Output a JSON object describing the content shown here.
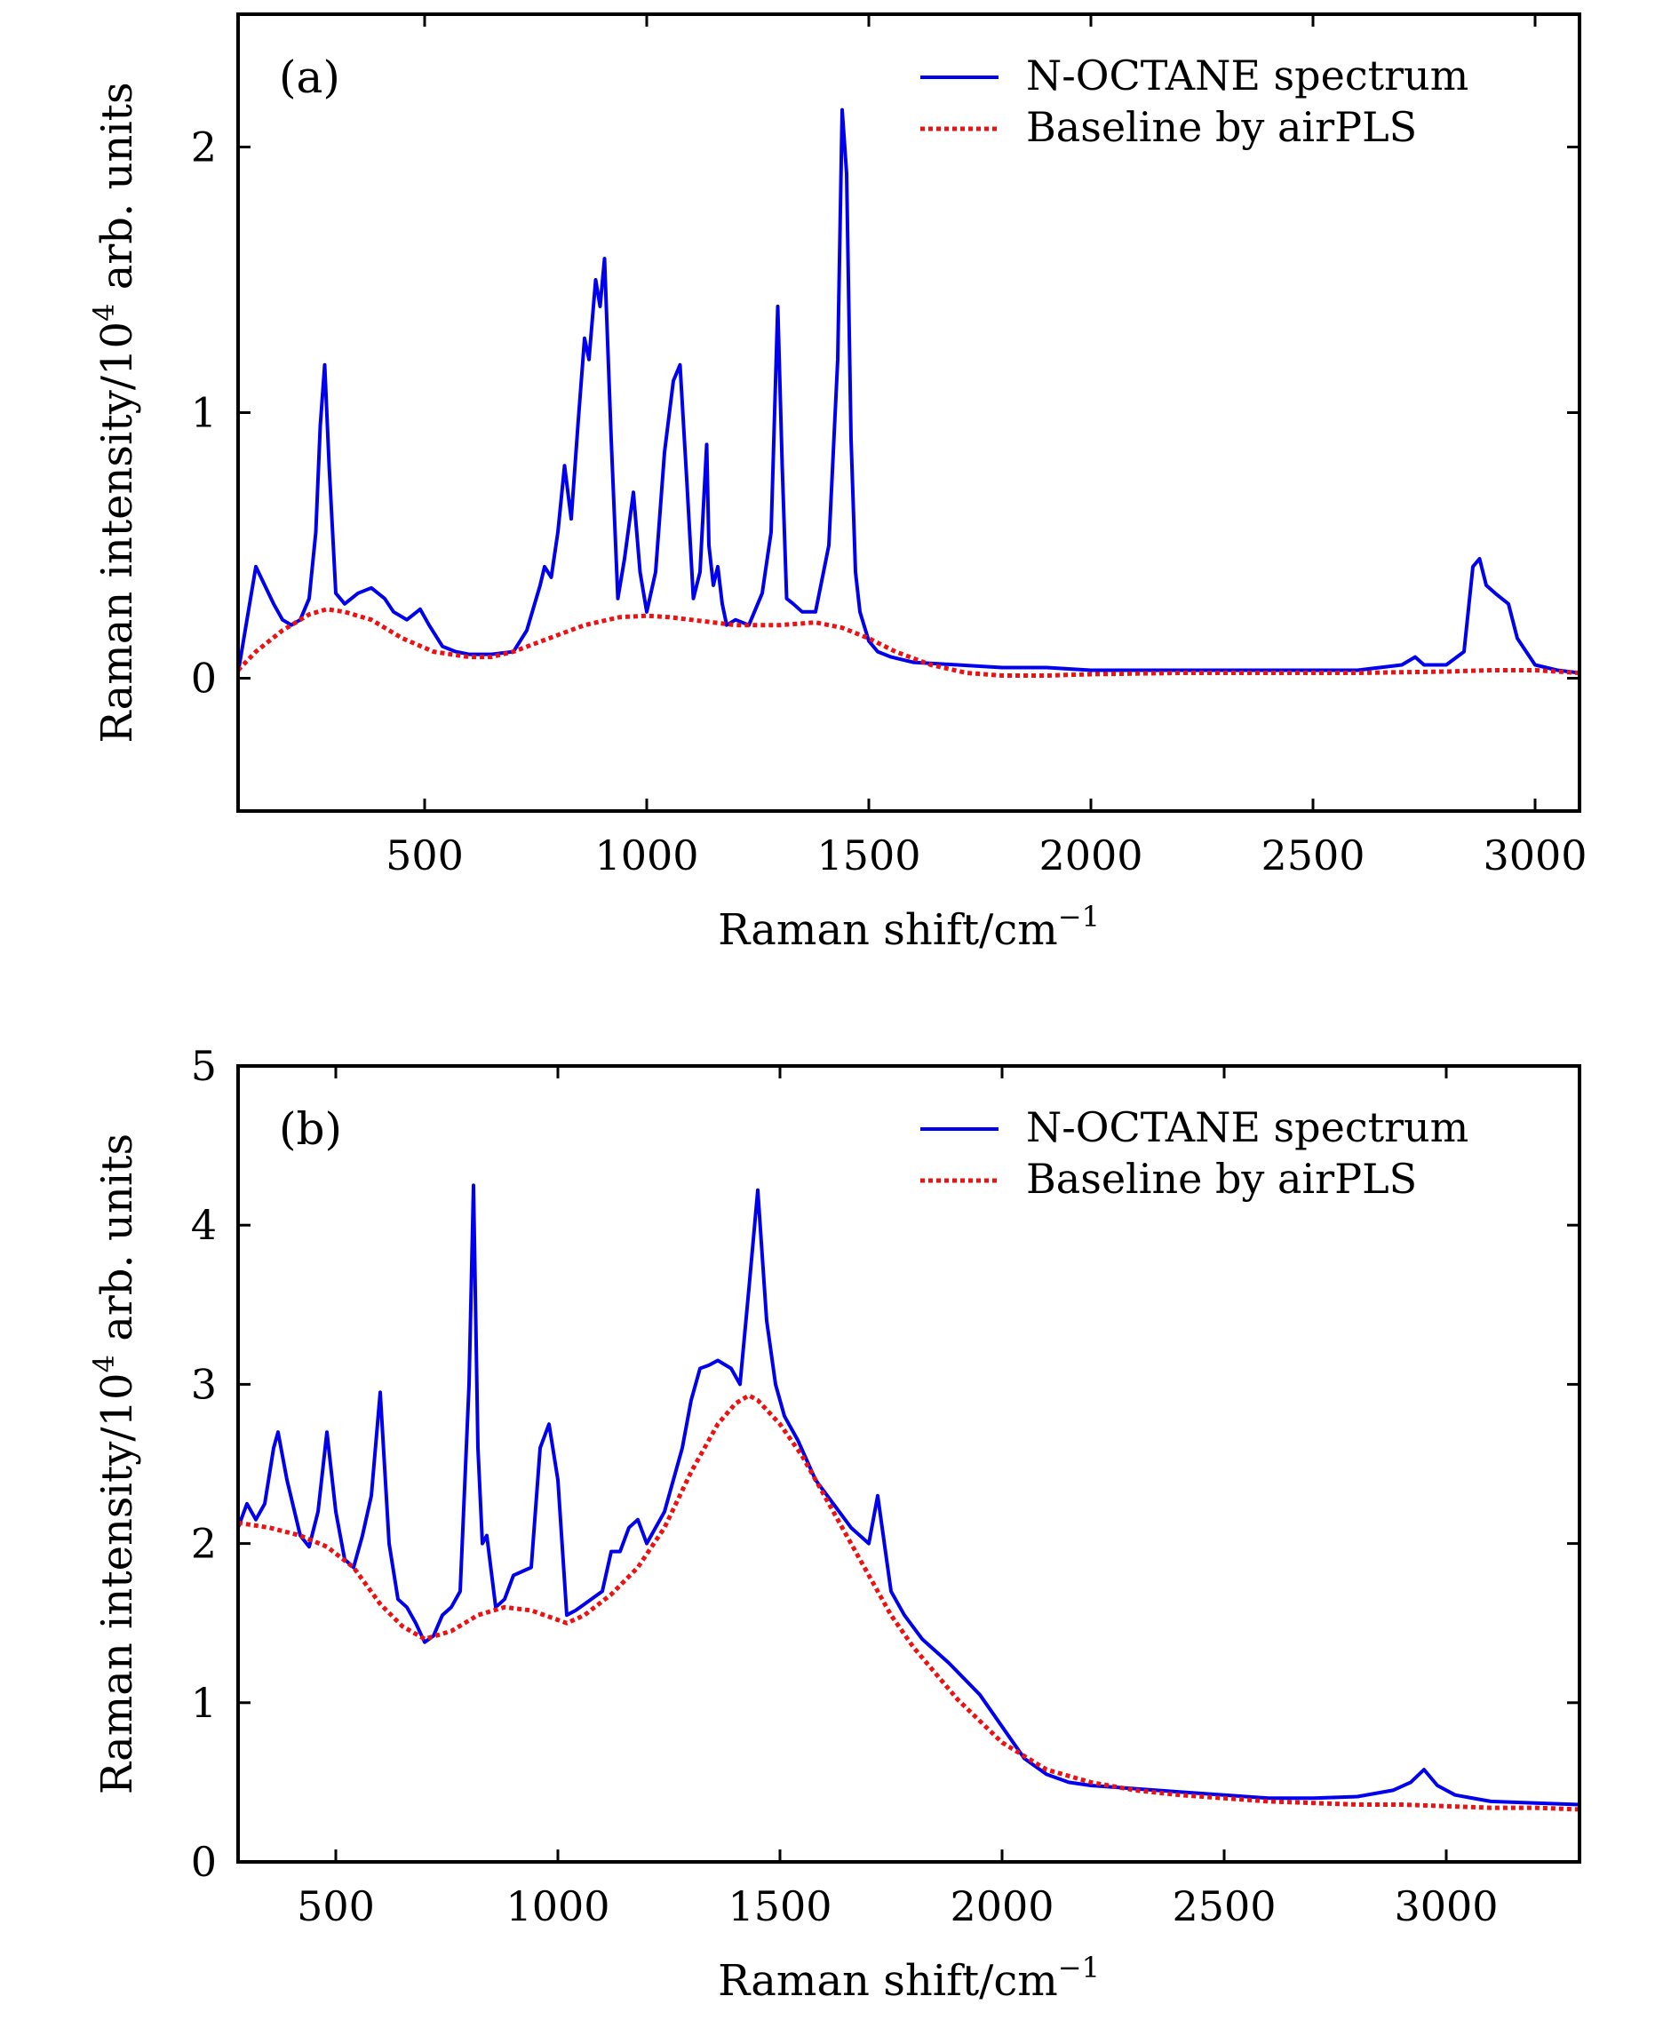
{
  "figure_title": "",
  "chart_data": [
    {
      "type": "line",
      "panel_label": "(a)",
      "title": "",
      "xlabel": "Raman shift/cm",
      "xlabel_sup": "−1",
      "ylabel_pre": "Raman intensity/10",
      "ylabel_sup": "4",
      "ylabel_post": " arb. units",
      "xlim": [
        80,
        3100
      ],
      "ylim": [
        -0.5,
        2.5
      ],
      "xticks": [
        500,
        1000,
        1500,
        2000,
        2500,
        3000
      ],
      "xtick_labels": [
        "500",
        "1000",
        "1500",
        "2000",
        "2500",
        "3000"
      ],
      "yticks": [
        0,
        1,
        2
      ],
      "ytick_labels": [
        "0",
        "1",
        "2"
      ],
      "legend_position": "top-right",
      "series": [
        {
          "name": "N-OCTANE spectrum",
          "color": "#0000ee",
          "style": "solid",
          "x": [
            80,
            100,
            120,
            140,
            160,
            180,
            200,
            220,
            240,
            255,
            265,
            275,
            285,
            300,
            320,
            350,
            380,
            410,
            430,
            460,
            490,
            510,
            540,
            570,
            600,
            650,
            700,
            730,
            760,
            770,
            785,
            800,
            815,
            830,
            845,
            860,
            870,
            885,
            895,
            905,
            920,
            935,
            950,
            970,
            985,
            1000,
            1020,
            1040,
            1060,
            1075,
            1090,
            1105,
            1120,
            1135,
            1140,
            1150,
            1160,
            1170,
            1180,
            1200,
            1230,
            1260,
            1280,
            1295,
            1305,
            1315,
            1330,
            1350,
            1380,
            1410,
            1430,
            1440,
            1450,
            1460,
            1470,
            1480,
            1500,
            1520,
            1550,
            1600,
            1700,
            1800,
            1900,
            2000,
            2100,
            2200,
            2300,
            2400,
            2500,
            2600,
            2700,
            2730,
            2750,
            2800,
            2840,
            2860,
            2875,
            2890,
            2910,
            2940,
            2960,
            3000,
            3050,
            3100
          ],
          "y": [
            0.02,
            0.22,
            0.42,
            0.35,
            0.28,
            0.22,
            0.2,
            0.22,
            0.3,
            0.55,
            0.95,
            1.18,
            0.8,
            0.32,
            0.28,
            0.32,
            0.34,
            0.3,
            0.25,
            0.22,
            0.26,
            0.2,
            0.12,
            0.1,
            0.09,
            0.09,
            0.1,
            0.18,
            0.35,
            0.42,
            0.38,
            0.55,
            0.8,
            0.6,
            0.95,
            1.28,
            1.2,
            1.5,
            1.4,
            1.58,
            0.9,
            0.3,
            0.45,
            0.7,
            0.4,
            0.25,
            0.4,
            0.85,
            1.12,
            1.18,
            0.75,
            0.3,
            0.4,
            0.88,
            0.5,
            0.35,
            0.42,
            0.28,
            0.2,
            0.22,
            0.2,
            0.32,
            0.55,
            1.4,
            0.8,
            0.3,
            0.28,
            0.25,
            0.25,
            0.5,
            1.2,
            2.14,
            1.9,
            0.9,
            0.4,
            0.25,
            0.14,
            0.1,
            0.08,
            0.06,
            0.05,
            0.04,
            0.04,
            0.03,
            0.03,
            0.03,
            0.03,
            0.03,
            0.03,
            0.03,
            0.05,
            0.08,
            0.05,
            0.05,
            0.1,
            0.42,
            0.45,
            0.35,
            0.32,
            0.28,
            0.15,
            0.05,
            0.03,
            0.02
          ]
        },
        {
          "name": "Baseline by airPLS",
          "color": "#ee1111",
          "style": "dotted",
          "x": [
            80,
            120,
            180,
            240,
            280,
            320,
            380,
            450,
            520,
            600,
            650,
            700,
            780,
            860,
            940,
            1000,
            1050,
            1100,
            1200,
            1300,
            1380,
            1440,
            1500,
            1560,
            1640,
            1720,
            1800,
            1900,
            2000,
            2200,
            2400,
            2600,
            2800,
            2900,
            3000,
            3100
          ],
          "y": [
            0.03,
            0.1,
            0.18,
            0.24,
            0.26,
            0.25,
            0.22,
            0.15,
            0.1,
            0.08,
            0.08,
            0.1,
            0.15,
            0.2,
            0.23,
            0.235,
            0.23,
            0.22,
            0.2,
            0.2,
            0.21,
            0.19,
            0.15,
            0.1,
            0.05,
            0.02,
            0.01,
            0.01,
            0.015,
            0.02,
            0.02,
            0.02,
            0.025,
            0.03,
            0.03,
            0.02
          ]
        }
      ]
    },
    {
      "type": "line",
      "panel_label": "(b)",
      "title": "",
      "xlabel": "Raman shift/cm",
      "xlabel_sup": "−1",
      "ylabel_pre": "Raman intensity/10",
      "ylabel_sup": "4",
      "ylabel_post": " arb. units",
      "xlim": [
        280,
        3300
      ],
      "ylim": [
        0,
        5
      ],
      "xticks": [
        500,
        1000,
        1500,
        2000,
        2500,
        3000
      ],
      "xtick_labels": [
        "500",
        "1000",
        "1500",
        "2000",
        "2500",
        "3000"
      ],
      "yticks": [
        0,
        1,
        2,
        3,
        4,
        5
      ],
      "ytick_labels": [
        "0",
        "1",
        "2",
        "3",
        "4",
        "5"
      ],
      "legend_position": "top-right",
      "series": [
        {
          "name": "N-OCTANE spectrum",
          "color": "#0000ee",
          "style": "solid",
          "x": [
            280,
            300,
            320,
            340,
            360,
            370,
            390,
            420,
            440,
            460,
            480,
            500,
            520,
            540,
            560,
            580,
            600,
            620,
            640,
            660,
            680,
            700,
            720,
            740,
            760,
            780,
            800,
            810,
            820,
            830,
            840,
            860,
            880,
            900,
            940,
            960,
            980,
            1000,
            1020,
            1040,
            1060,
            1100,
            1120,
            1140,
            1160,
            1180,
            1200,
            1240,
            1280,
            1300,
            1320,
            1340,
            1360,
            1390,
            1410,
            1430,
            1450,
            1470,
            1490,
            1510,
            1540,
            1580,
            1620,
            1660,
            1700,
            1720,
            1730,
            1750,
            1780,
            1820,
            1880,
            1950,
            2000,
            2050,
            2100,
            2150,
            2200,
            2300,
            2400,
            2500,
            2600,
            2700,
            2800,
            2880,
            2920,
            2950,
            2980,
            3020,
            3100,
            3200,
            3300
          ],
          "y": [
            2.1,
            2.25,
            2.15,
            2.25,
            2.6,
            2.7,
            2.4,
            2.05,
            1.98,
            2.2,
            2.7,
            2.2,
            1.9,
            1.85,
            2.05,
            2.3,
            2.95,
            2.0,
            1.65,
            1.6,
            1.5,
            1.38,
            1.42,
            1.55,
            1.6,
            1.7,
            3.0,
            4.25,
            2.6,
            2.0,
            2.05,
            1.6,
            1.65,
            1.8,
            1.85,
            2.6,
            2.75,
            2.4,
            1.55,
            1.58,
            1.62,
            1.7,
            1.95,
            1.95,
            2.1,
            2.15,
            2.0,
            2.2,
            2.6,
            2.9,
            3.1,
            3.12,
            3.15,
            3.1,
            3.0,
            3.6,
            4.22,
            3.4,
            3.0,
            2.8,
            2.65,
            2.4,
            2.25,
            2.1,
            2.0,
            2.3,
            2.1,
            1.7,
            1.55,
            1.4,
            1.25,
            1.05,
            0.85,
            0.65,
            0.55,
            0.5,
            0.48,
            0.46,
            0.44,
            0.42,
            0.4,
            0.4,
            0.41,
            0.45,
            0.5,
            0.58,
            0.48,
            0.42,
            0.38,
            0.37,
            0.36
          ]
        },
        {
          "name": "Baseline by airPLS",
          "color": "#ee1111",
          "style": "dotted",
          "x": [
            280,
            350,
            420,
            480,
            540,
            600,
            650,
            700,
            760,
            820,
            880,
            940,
            1000,
            1020,
            1060,
            1120,
            1180,
            1240,
            1300,
            1360,
            1400,
            1430,
            1450,
            1500,
            1550,
            1600,
            1650,
            1700,
            1750,
            1800,
            1900,
            2000,
            2100,
            2200,
            2300,
            2400,
            2500,
            2600,
            2700,
            2800,
            2900,
            3000,
            3100,
            3200,
            3300
          ],
          "y": [
            2.13,
            2.1,
            2.05,
            1.98,
            1.85,
            1.62,
            1.48,
            1.4,
            1.45,
            1.55,
            1.6,
            1.58,
            1.52,
            1.5,
            1.55,
            1.68,
            1.85,
            2.1,
            2.45,
            2.75,
            2.88,
            2.93,
            2.9,
            2.75,
            2.55,
            2.3,
            2.05,
            1.8,
            1.55,
            1.35,
            1.02,
            0.75,
            0.58,
            0.5,
            0.45,
            0.42,
            0.4,
            0.38,
            0.37,
            0.36,
            0.36,
            0.35,
            0.34,
            0.34,
            0.33
          ]
        }
      ]
    }
  ]
}
